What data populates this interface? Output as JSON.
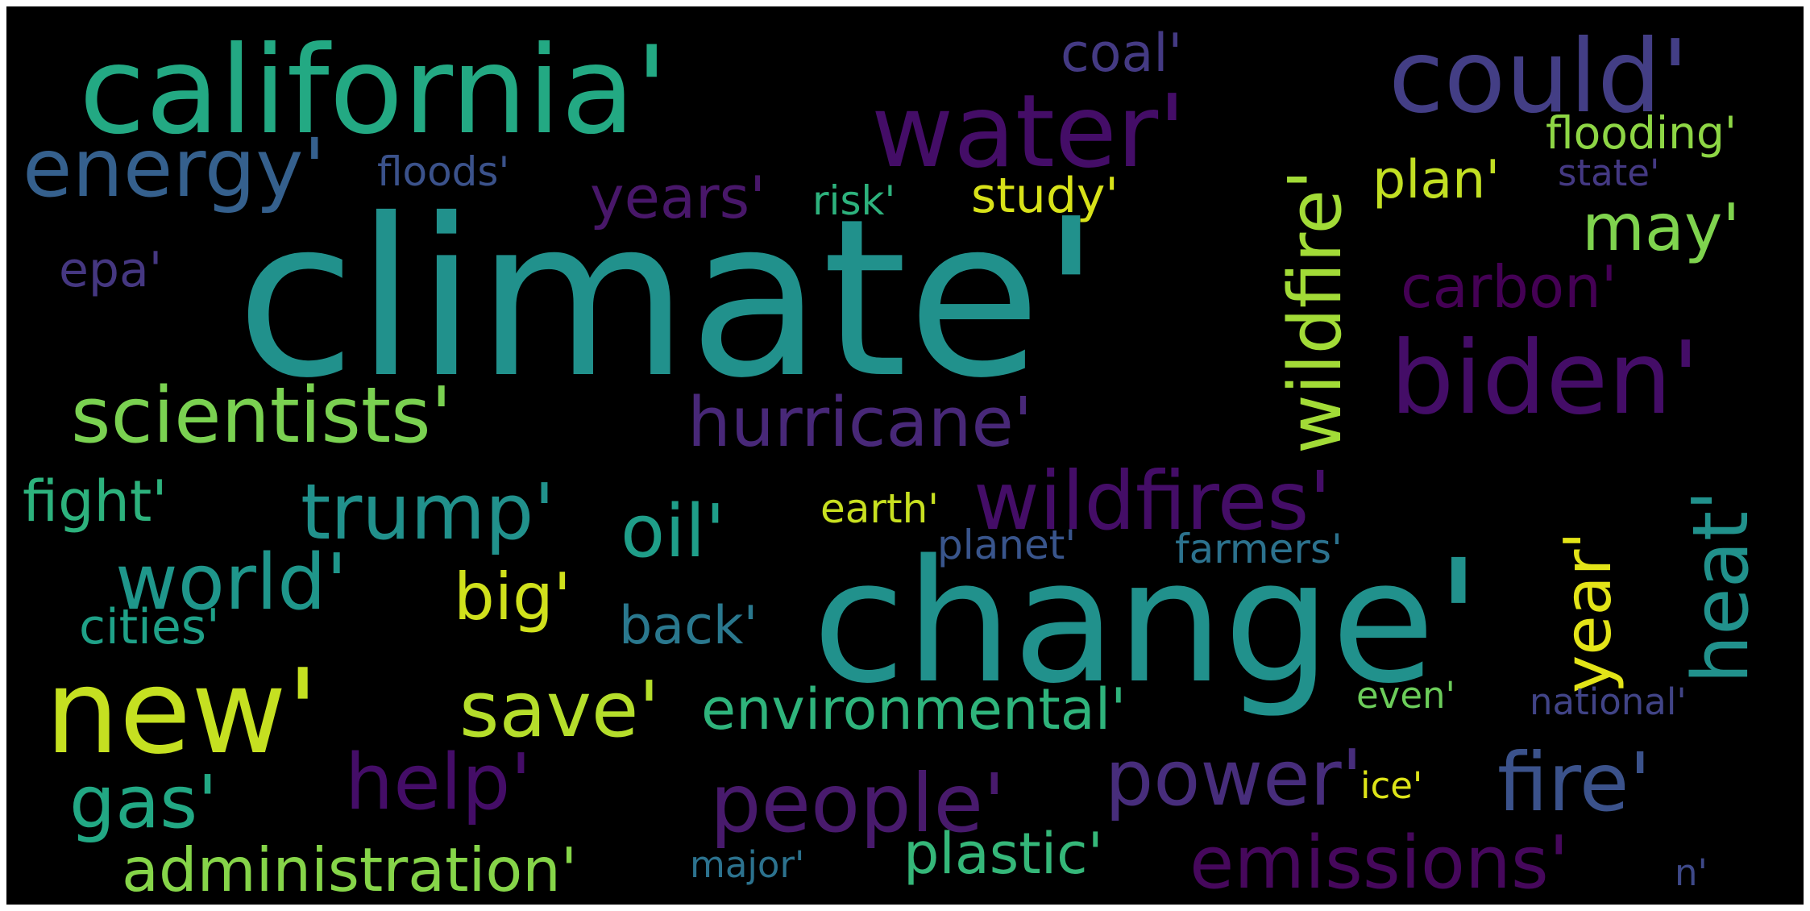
{
  "word_cloud": {
    "background": "#000000",
    "words": [
      {
        "text": "climate'",
        "color": "#21918c"
      },
      {
        "text": "change'",
        "color": "#21918c"
      },
      {
        "text": "california'",
        "color": "#23a983"
      },
      {
        "text": "water'",
        "color": "#440d67"
      },
      {
        "text": "could'",
        "color": "#433e85"
      },
      {
        "text": "biden'",
        "color": "#440d67"
      },
      {
        "text": "new'",
        "color": "#c5e021"
      },
      {
        "text": "energy'",
        "color": "#35608d"
      },
      {
        "text": "wildfire'",
        "color": "#a2db37"
      },
      {
        "text": "scientists'",
        "color": "#7ad151"
      },
      {
        "text": "hurricane'",
        "color": "#482878"
      },
      {
        "text": "wildfires'",
        "color": "#440d67"
      },
      {
        "text": "trump'",
        "color": "#21918c"
      },
      {
        "text": "oil'",
        "color": "#1f9e89"
      },
      {
        "text": "world'",
        "color": "#1f968b"
      },
      {
        "text": "heat'",
        "color": "#21918c"
      },
      {
        "text": "year'",
        "color": "#e3e418"
      },
      {
        "text": "save'",
        "color": "#b5de2b"
      },
      {
        "text": "environmental'",
        "color": "#2fb47c"
      },
      {
        "text": "help'",
        "color": "#440d67"
      },
      {
        "text": "people'",
        "color": "#481a6c"
      },
      {
        "text": "power'",
        "color": "#472d7b"
      },
      {
        "text": "fire'",
        "color": "#3b528b"
      },
      {
        "text": "gas'",
        "color": "#22a884"
      },
      {
        "text": "administration'",
        "color": "#86d549"
      },
      {
        "text": "plastic'",
        "color": "#35b779"
      },
      {
        "text": "emissions'",
        "color": "#46085c"
      },
      {
        "text": "years'",
        "color": "#481769"
      },
      {
        "text": "coal'",
        "color": "#443a83"
      },
      {
        "text": "study'",
        "color": "#d8e219"
      },
      {
        "text": "plan'",
        "color": "#c2df23"
      },
      {
        "text": "may'",
        "color": "#7fd34e"
      },
      {
        "text": "carbon'",
        "color": "#440154"
      },
      {
        "text": "flooding'",
        "color": "#8ed645"
      },
      {
        "text": "state'",
        "color": "#443983"
      },
      {
        "text": "floods'",
        "color": "#3b528b"
      },
      {
        "text": "risk'",
        "color": "#2db27d"
      },
      {
        "text": "epa'",
        "color": "#453781"
      },
      {
        "text": "fight'",
        "color": "#2db27d"
      },
      {
        "text": "big'",
        "color": "#d0e11c"
      },
      {
        "text": "earth'",
        "color": "#c8e020"
      },
      {
        "text": "planet'",
        "color": "#39558c"
      },
      {
        "text": "farmers'",
        "color": "#2c728e"
      },
      {
        "text": "cities'",
        "color": "#1fa188"
      },
      {
        "text": "back'",
        "color": "#2a788e"
      },
      {
        "text": "even'",
        "color": "#6ccd5a"
      },
      {
        "text": "national'",
        "color": "#414487"
      },
      {
        "text": "ice'",
        "color": "#dde318"
      },
      {
        "text": "major'",
        "color": "#2c728e"
      },
      {
        "text": "n'",
        "color": "#3e4989"
      }
    ]
  }
}
